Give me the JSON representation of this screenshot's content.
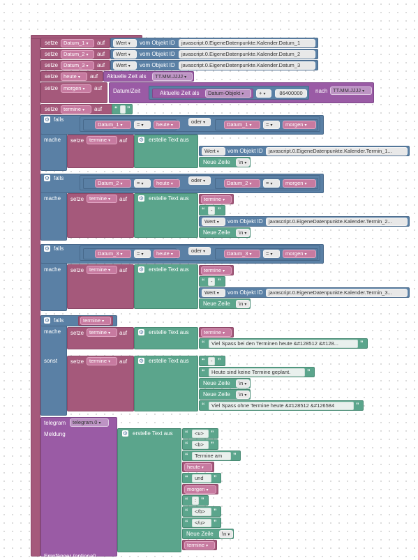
{
  "setze": "setze",
  "auf": "auf",
  "wert": "Wert",
  "vom_objekt": "vom Objekt ID",
  "falls": "falls",
  "mache": "mache",
  "sonst": "sonst",
  "oder": "oder",
  "erstelle": "erstelle Text aus",
  "neue_zeile": "Neue Zeile",
  "nl": "\\n",
  "eq": "=",
  "plus": "+",
  "caret": "▾",
  "datum_1": "Datum_1",
  "datum_2": "Datum_2",
  "datum_3": "Datum_3",
  "heute": "heute",
  "morgen": "morgen",
  "termine": "termine",
  "id_datum_1": "javascript.0.EigeneDatenpunkte.Kalender.Datum_1",
  "id_datum_2": "javascript.0.EigeneDatenpunkte.Kalender.Datum_2",
  "id_datum_3": "javascript.0.EigeneDatenpunkte.Kalender.Datum_3",
  "aktuelle_zeit_als": "Aktuelle Zeit als",
  "fmt": "TT.MM.JJJJ",
  "datum_zeit": "Datum/Zeit",
  "datum_objekt": "Datum-Objekt",
  "ms": "86400000",
  "nach": "nach",
  "id_termin_1": "javascript.0.EigeneDatenpunkte.Kalender.Termin_1...",
  "id_termin_2": "javascript.0.EigeneDatenpunkte.Kalender.Termin_2...",
  "id_termin_3": "javascript.0.EigeneDatenpunkte.Kalender.Termin_3...",
  "dash": "-",
  "viel_spass_heute": "Viel Spass bei den Terminen heute &#128512 &#128...",
  "keine_termine": "Heute sind keine Termine geplant.",
  "viel_spass_ohne": "Viel Spass ohne Termine heute &#128512 &#126584",
  "telegram": "telegram",
  "telegram_inst": "telegram.0",
  "meldung": "Meldung",
  "u_open": "<u>",
  "b_open": "<b>",
  "termine_am": "Termine am",
  "und": "und",
  "colon": ":",
  "b_close": "</b>",
  "u_close": "</u>",
  "empfaenger": "Empfänger (optional)"
}
